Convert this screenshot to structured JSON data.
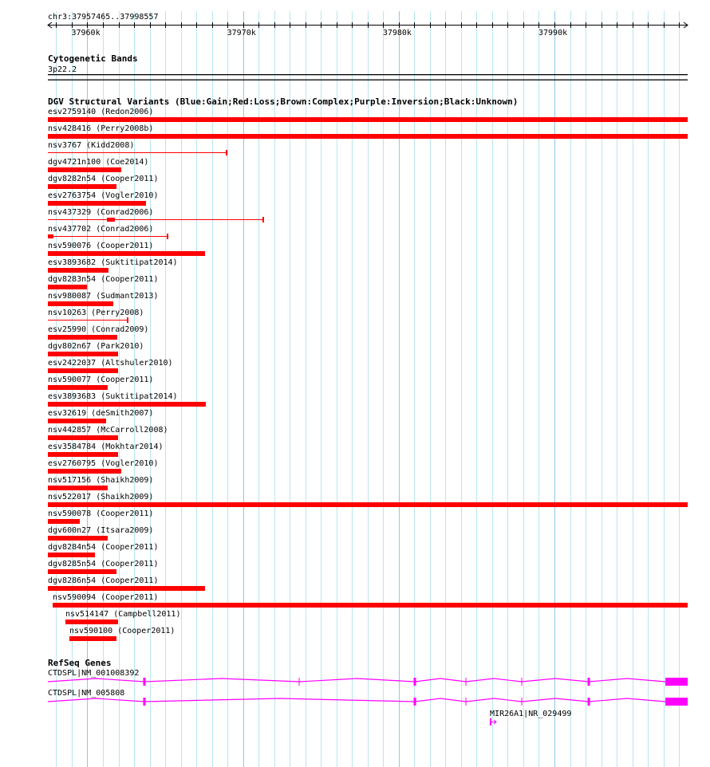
{
  "region": {
    "label": "chr3:37957465..37998557",
    "chrom": "chr3",
    "start": 37957465,
    "end": 37998557
  },
  "ruler": {
    "ticks_kb": [
      37960,
      37970,
      37980,
      37990
    ],
    "tick_labels": [
      "37960k",
      "37970k",
      "37980k",
      "37990k"
    ]
  },
  "cytobands": {
    "title": "Cytogenetic Bands",
    "band": "3p22.2"
  },
  "dgv": {
    "title": "DGV Structural Variants (Blue:Gain;Red:Loss;Brown:Complex;Purple:Inversion;Black:Unknown)",
    "loss_color": "#ff0000",
    "variants": [
      {
        "label": "esv2759140 (Redon2006)",
        "start": 37957465,
        "end": 37998557
      },
      {
        "label": "nsv428416 (Perry2008b)",
        "start": 37957465,
        "end": 37998557
      },
      {
        "label": "nsv3767 (Kidd2008)",
        "start": 37957465,
        "end": 37968943,
        "thin": true
      },
      {
        "label": "dgv4721n100 (Coe2014)",
        "start": 37957465,
        "end": 37962179
      },
      {
        "label": "dgv8282n54 (Cooper2011)",
        "start": 37957465,
        "end": 37961872
      },
      {
        "label": "esv2763754 (Vogler2010)",
        "start": 37957465,
        "end": 37963768
      },
      {
        "label": "nsv437329 (Conrad2006)",
        "start": 37957465,
        "end": 37971300,
        "thin": true,
        "thick": [
          37961257,
          37961769
        ]
      },
      {
        "label": "nsv437702 (Conrad2006)",
        "start": 37957465,
        "end": 37965151,
        "thin": true,
        "thick": [
          37957465,
          37957824
        ]
      },
      {
        "label": "nsv590076 (Cooper2011)",
        "start": 37957465,
        "end": 37967559
      },
      {
        "label": "esv3893682 (Suktitipat2014)",
        "start": 37957465,
        "end": 37961359
      },
      {
        "label": "dgv8283n54 (Cooper2011)",
        "start": 37957465,
        "end": 37959976
      },
      {
        "label": "nsv980087 (Sudmant2013)",
        "start": 37957465,
        "end": 37961667
      },
      {
        "label": "nsv10263 (Perry2008)",
        "start": 37957465,
        "end": 37962589,
        "thin": true
      },
      {
        "label": "esv25990 (Conrad2009)",
        "start": 37957465,
        "end": 37961923
      },
      {
        "label": "dgv802n67 (Park2010)",
        "start": 37957465,
        "end": 37961974
      },
      {
        "label": "esv2422037 (Altshuler2010)",
        "start": 37957465,
        "end": 37961974
      },
      {
        "label": "nsv590077 (Cooper2011)",
        "start": 37957465,
        "end": 37961308
      },
      {
        "label": "esv3893683 (Suktitipat2014)",
        "start": 37957465,
        "end": 37967611
      },
      {
        "label": "esv32619 (deSmith2007)",
        "start": 37957465,
        "end": 37961206
      },
      {
        "label": "nsv442857 (McCarroll2008)",
        "start": 37957465,
        "end": 37961974
      },
      {
        "label": "esv3584784 (Mokhtar2014)",
        "start": 37957465,
        "end": 37961974
      },
      {
        "label": "esv2760795 (Vogler2010)",
        "start": 37957465,
        "end": 37962179
      },
      {
        "label": "nsv517156 (Shaikh2009)",
        "start": 37957465,
        "end": 37961308
      },
      {
        "label": "nsv522017 (Shaikh2009)",
        "start": 37957465,
        "end": 37998557
      },
      {
        "label": "nsv590078 (Cooper2011)",
        "start": 37957465,
        "end": 37959515
      },
      {
        "label": "dgv600n27 (Itsara2009)",
        "start": 37957465,
        "end": 37961308
      },
      {
        "label": "dgv8284n54 (Cooper2011)",
        "start": 37957465,
        "end": 37960488
      },
      {
        "label": "dgv8285n54 (Cooper2011)",
        "start": 37957465,
        "end": 37961872
      },
      {
        "label": "dgv8286n54 (Cooper2011)",
        "start": 37957465,
        "end": 37967559
      },
      {
        "label": "nsv590094 (Cooper2011)",
        "start": 37957772,
        "end": 37998557
      },
      {
        "label": "nsv514147 (Campbell2011)",
        "start": 37958592,
        "end": 37961974
      },
      {
        "label": "nsv590100 (Cooper2011)",
        "start": 37958848,
        "end": 37961872
      }
    ]
  },
  "refseq": {
    "title": "RefSeq Genes",
    "color": "#ff00ff",
    "transcripts": [
      {
        "label": "CTDSPL|NM_001008392",
        "exons": [
          37963665,
          37973606,
          37981035,
          37984315,
          37987902,
          37992206
        ],
        "thick_exons": [
          37963665,
          37981035,
          37992206
        ],
        "last_exon": [
          37997125,
          37998557
        ]
      },
      {
        "label": "CTDSPL|NM_005808",
        "exons": [
          37963665,
          37981035,
          37984315,
          37987902,
          37992206
        ],
        "thick_exons": [
          37963665,
          37981035,
          37992206
        ],
        "last_exon": [
          37997125,
          37998557
        ]
      }
    ],
    "mirna": {
      "label": "MIR26A1|NR_029499",
      "start": 37985852
    }
  }
}
